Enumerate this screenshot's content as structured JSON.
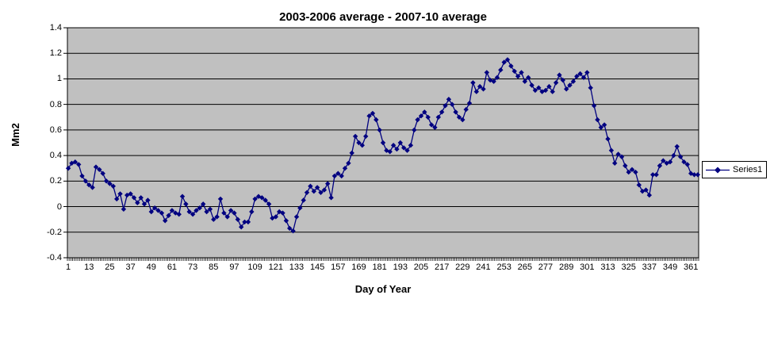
{
  "chart_data": {
    "type": "line",
    "title": "2003-2006 average - 2007-10 average",
    "xlabel": "Day of Year",
    "ylabel": "Mm2",
    "legend_position": "right",
    "grid": true,
    "colors": {
      "series": "#000080",
      "plot_background": "#C0C0C0",
      "gridline": "#000000",
      "chart_background": "#FFFFFF",
      "text": "#000000"
    },
    "ylim": [
      -0.4,
      1.4
    ],
    "xlim": [
      1,
      365
    ],
    "y_ticks": [
      {
        "value": 1.4,
        "label": "1.4"
      },
      {
        "value": 1.2,
        "label": "1.2"
      },
      {
        "value": 1.0,
        "label": "1"
      },
      {
        "value": 0.8,
        "label": "0.8"
      },
      {
        "value": 0.6,
        "label": "0.6"
      },
      {
        "value": 0.4,
        "label": "0.4"
      },
      {
        "value": 0.2,
        "label": "0.2"
      },
      {
        "value": 0.0,
        "label": "0"
      },
      {
        "value": -0.2,
        "label": "-0.2"
      },
      {
        "value": -0.4,
        "label": "-0.4"
      }
    ],
    "x_ticks": [
      1,
      13,
      25,
      37,
      49,
      61,
      73,
      85,
      97,
      109,
      121,
      133,
      145,
      157,
      169,
      181,
      193,
      205,
      217,
      229,
      241,
      253,
      265,
      277,
      289,
      301,
      313,
      325,
      337,
      349,
      361
    ],
    "series": [
      {
        "name": "Series1",
        "marker": "diamond",
        "points": [
          [
            1,
            0.3
          ],
          [
            3,
            0.34
          ],
          [
            5,
            0.35
          ],
          [
            7,
            0.33
          ],
          [
            9,
            0.24
          ],
          [
            11,
            0.2
          ],
          [
            13,
            0.17
          ],
          [
            15,
            0.15
          ],
          [
            17,
            0.31
          ],
          [
            19,
            0.29
          ],
          [
            21,
            0.26
          ],
          [
            23,
            0.2
          ],
          [
            25,
            0.18
          ],
          [
            27,
            0.16
          ],
          [
            29,
            0.06
          ],
          [
            31,
            0.1
          ],
          [
            33,
            -0.02
          ],
          [
            35,
            0.09
          ],
          [
            37,
            0.1
          ],
          [
            39,
            0.07
          ],
          [
            41,
            0.03
          ],
          [
            43,
            0.07
          ],
          [
            45,
            0.02
          ],
          [
            47,
            0.05
          ],
          [
            49,
            -0.04
          ],
          [
            51,
            -0.01
          ],
          [
            53,
            -0.03
          ],
          [
            55,
            -0.05
          ],
          [
            57,
            -0.11
          ],
          [
            59,
            -0.07
          ],
          [
            61,
            -0.03
          ],
          [
            63,
            -0.05
          ],
          [
            65,
            -0.06
          ],
          [
            67,
            0.08
          ],
          [
            69,
            0.02
          ],
          [
            71,
            -0.04
          ],
          [
            73,
            -0.06
          ],
          [
            75,
            -0.03
          ],
          [
            77,
            -0.01
          ],
          [
            79,
            0.02
          ],
          [
            81,
            -0.04
          ],
          [
            83,
            -0.02
          ],
          [
            85,
            -0.1
          ],
          [
            87,
            -0.08
          ],
          [
            89,
            0.06
          ],
          [
            91,
            -0.05
          ],
          [
            93,
            -0.08
          ],
          [
            95,
            -0.03
          ],
          [
            97,
            -0.05
          ],
          [
            99,
            -0.1
          ],
          [
            101,
            -0.16
          ],
          [
            103,
            -0.12
          ],
          [
            105,
            -0.12
          ],
          [
            107,
            -0.04
          ],
          [
            109,
            0.06
          ],
          [
            111,
            0.08
          ],
          [
            113,
            0.07
          ],
          [
            115,
            0.05
          ],
          [
            117,
            0.02
          ],
          [
            119,
            -0.09
          ],
          [
            121,
            -0.08
          ],
          [
            123,
            -0.04
          ],
          [
            125,
            -0.05
          ],
          [
            127,
            -0.11
          ],
          [
            129,
            -0.17
          ],
          [
            131,
            -0.19
          ],
          [
            133,
            -0.08
          ],
          [
            135,
            -0.01
          ],
          [
            137,
            0.05
          ],
          [
            139,
            0.11
          ],
          [
            141,
            0.16
          ],
          [
            143,
            0.12
          ],
          [
            145,
            0.15
          ],
          [
            147,
            0.11
          ],
          [
            149,
            0.13
          ],
          [
            151,
            0.18
          ],
          [
            153,
            0.07
          ],
          [
            155,
            0.24
          ],
          [
            157,
            0.26
          ],
          [
            159,
            0.24
          ],
          [
            161,
            0.3
          ],
          [
            163,
            0.34
          ],
          [
            165,
            0.42
          ],
          [
            167,
            0.55
          ],
          [
            169,
            0.5
          ],
          [
            171,
            0.48
          ],
          [
            173,
            0.55
          ],
          [
            175,
            0.71
          ],
          [
            177,
            0.73
          ],
          [
            179,
            0.68
          ],
          [
            181,
            0.6
          ],
          [
            183,
            0.5
          ],
          [
            185,
            0.44
          ],
          [
            187,
            0.43
          ],
          [
            189,
            0.48
          ],
          [
            191,
            0.45
          ],
          [
            193,
            0.5
          ],
          [
            195,
            0.46
          ],
          [
            197,
            0.44
          ],
          [
            199,
            0.48
          ],
          [
            201,
            0.6
          ],
          [
            203,
            0.68
          ],
          [
            205,
            0.71
          ],
          [
            207,
            0.74
          ],
          [
            209,
            0.7
          ],
          [
            211,
            0.64
          ],
          [
            213,
            0.62
          ],
          [
            215,
            0.7
          ],
          [
            217,
            0.74
          ],
          [
            219,
            0.79
          ],
          [
            221,
            0.84
          ],
          [
            223,
            0.8
          ],
          [
            225,
            0.74
          ],
          [
            227,
            0.7
          ],
          [
            229,
            0.68
          ],
          [
            231,
            0.76
          ],
          [
            233,
            0.81
          ],
          [
            235,
            0.97
          ],
          [
            237,
            0.9
          ],
          [
            239,
            0.94
          ],
          [
            241,
            0.92
          ],
          [
            243,
            1.05
          ],
          [
            245,
            0.99
          ],
          [
            247,
            0.98
          ],
          [
            249,
            1.01
          ],
          [
            251,
            1.07
          ],
          [
            253,
            1.13
          ],
          [
            255,
            1.15
          ],
          [
            257,
            1.1
          ],
          [
            259,
            1.06
          ],
          [
            261,
            1.02
          ],
          [
            263,
            1.05
          ],
          [
            265,
            0.98
          ],
          [
            267,
            1.01
          ],
          [
            269,
            0.95
          ],
          [
            271,
            0.91
          ],
          [
            273,
            0.93
          ],
          [
            275,
            0.9
          ],
          [
            277,
            0.91
          ],
          [
            279,
            0.94
          ],
          [
            281,
            0.9
          ],
          [
            283,
            0.97
          ],
          [
            285,
            1.03
          ],
          [
            287,
            0.99
          ],
          [
            289,
            0.92
          ],
          [
            291,
            0.95
          ],
          [
            293,
            0.98
          ],
          [
            295,
            1.02
          ],
          [
            297,
            1.04
          ],
          [
            299,
            1.01
          ],
          [
            301,
            1.05
          ],
          [
            303,
            0.93
          ],
          [
            305,
            0.79
          ],
          [
            307,
            0.68
          ],
          [
            309,
            0.62
          ],
          [
            311,
            0.64
          ],
          [
            313,
            0.53
          ],
          [
            315,
            0.44
          ],
          [
            317,
            0.34
          ],
          [
            319,
            0.41
          ],
          [
            321,
            0.39
          ],
          [
            323,
            0.32
          ],
          [
            325,
            0.27
          ],
          [
            327,
            0.29
          ],
          [
            329,
            0.27
          ],
          [
            331,
            0.17
          ],
          [
            333,
            0.12
          ],
          [
            335,
            0.13
          ],
          [
            337,
            0.09
          ],
          [
            339,
            0.25
          ],
          [
            341,
            0.25
          ],
          [
            343,
            0.32
          ],
          [
            345,
            0.36
          ],
          [
            347,
            0.34
          ],
          [
            349,
            0.35
          ],
          [
            351,
            0.4
          ],
          [
            353,
            0.47
          ],
          [
            355,
            0.39
          ],
          [
            357,
            0.35
          ],
          [
            359,
            0.33
          ],
          [
            361,
            0.26
          ],
          [
            363,
            0.25
          ],
          [
            365,
            0.25
          ]
        ]
      }
    ]
  }
}
